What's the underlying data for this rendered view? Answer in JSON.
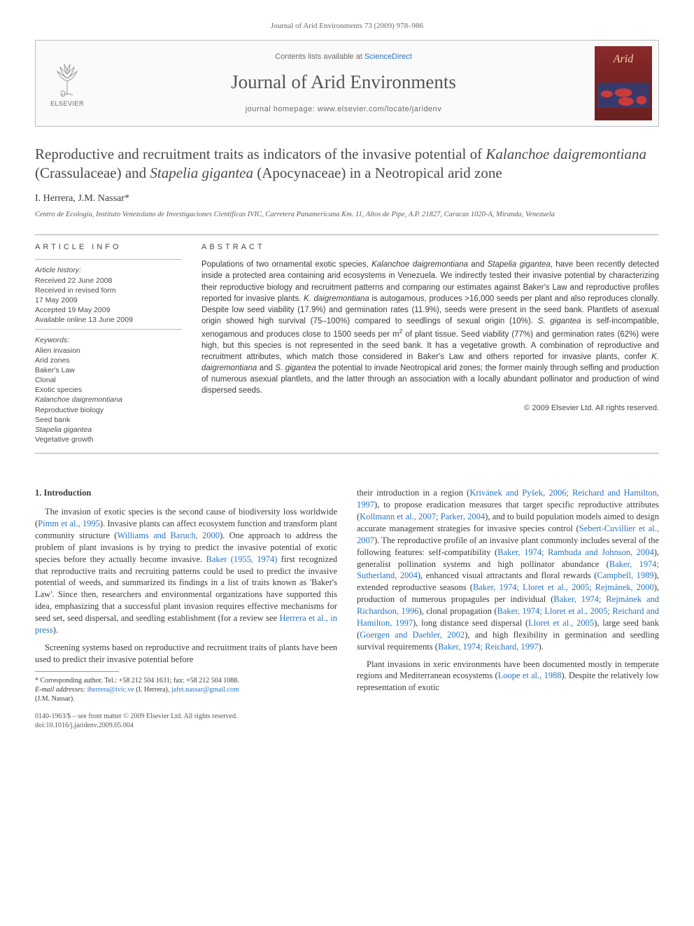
{
  "running_head": "Journal of Arid Environments 73 (2009) 978–986",
  "header": {
    "contents_prefix": "Contents lists available at ",
    "contents_link": "ScienceDirect",
    "journal_title": "Journal of Arid Environments",
    "homepage_prefix": "journal homepage: ",
    "homepage_url": "www.elsevier.com/locate/jaridenv",
    "publisher_label": "ELSEVIER",
    "cover_brand": "Arid"
  },
  "title_parts": {
    "p1": "Reproductive and recruitment traits as indicators of the invasive potential of ",
    "s1": "Kalanchoe daigremontiana",
    "p2": " (Crassulaceae) and ",
    "s2": "Stapelia gigantea",
    "p3": " (Apocynaceae) in a Neotropical arid zone"
  },
  "authors": "I. Herrera, J.M. Nassar*",
  "affiliation": "Centro de Ecología, Instituto Venezolano de Investigaciones Científicas IVIC, Carretera Panamericana Km. 11, Altos de Pipe, A.P. 21827, Caracas 1020-A, Miranda, Venezuela",
  "info": {
    "section_label": "ARTICLE INFO",
    "history_label": "Article history:",
    "received": "Received 22 June 2008",
    "revised_1": "Received in revised form",
    "revised_2": "17 May 2009",
    "accepted": "Accepted 19 May 2009",
    "online": "Available online 13 June 2009",
    "keywords_label": "Keywords:",
    "keywords": [
      {
        "t": "Alien invasion",
        "ital": false
      },
      {
        "t": "Arid zones",
        "ital": false
      },
      {
        "t": "Baker's Law",
        "ital": false
      },
      {
        "t": "Clonal",
        "ital": false
      },
      {
        "t": "Exotic species",
        "ital": false
      },
      {
        "t": "Kalanchoe daigremontiana",
        "ital": true
      },
      {
        "t": "Reproductive biology",
        "ital": false
      },
      {
        "t": "Seed bank",
        "ital": false
      },
      {
        "t": "Stapelia gigantea",
        "ital": true
      },
      {
        "t": "Vegetative growth",
        "ital": false
      }
    ]
  },
  "abstract": {
    "section_label": "ABSTRACT",
    "text_html": "Populations of two ornamental exotic species, <span class='ital'>Kalanchoe daigremontiana</span> and <span class='ital'>Stapelia gigantea</span>, have been recently detected inside a protected area containing arid ecosystems in Venezuela. We indirectly tested their invasive potential by characterizing their reproductive biology and recruitment patterns and comparing our estimates against Baker's Law and reproductive profiles reported for invasive plants. <span class='ital'>K. daigremontiana</span> is autogamous, produces &gt;16,000 seeds per plant and also reproduces clonally. Despite low seed viability (17.9%) and germination rates (11.9%), seeds were present in the seed bank. Plantlets of asexual origin showed high survival (75–100%) compared to seedlings of sexual origin (10%). <span class='ital'>S. gigantea</span> is self-incompatible, xenogamous and produces close to 1500 seeds per m<span class='sup'>2</span> of plant tissue. Seed viability (77%) and germination rates (62%) were high, but this species is not represented in the seed bank. It has a vegetative growth. A combination of reproductive and recruitment attributes, which match those considered in Baker's Law and others reported for invasive plants, confer <span class='ital'>K. daigremontiana</span> and <span class='ital'>S. gigantea</span> the potential to invade Neotropical arid zones; the former mainly through selfing and production of numerous asexual plantlets, and the latter through an association with a locally abundant pollinator and production of wind dispersed seeds.",
    "copyright": "© 2009 Elsevier Ltd. All rights reserved."
  },
  "body": {
    "h1": "1. Introduction",
    "p1": "The invasion of exotic species is the second cause of biodiversity loss worldwide (<a class='ref'>Pimm et al., 1995</a>). Invasive plants can affect ecosystem function and transform plant community structure (<a class='ref'>Williams and Baruch, 2000</a>). One approach to address the problem of plant invasions is by trying to predict the invasive potential of exotic species before they actually become invasive. <a class='ref'>Baker (1955, 1974)</a> first recognized that reproductive traits and recruiting patterns could be used to predict the invasive potential of weeds, and summarized its findings in a list of traits known as 'Baker's Law'. Since then, researchers and environmental organizations have supported this idea, emphasizing that a successful plant invasion requires effective mechanisms for seed set, seed dispersal, and seedling establishment (for a review see <a class='ref'>Herrera et al., in press</a>).",
    "p2": "Screening systems based on reproductive and recruitment traits of plants have been used to predict their invasive potential before",
    "p3": "their introduction in a region (<a class='ref'>Krivánek and Pyšek, 2006; Reichard and Hamilton, 1997</a>), to propose eradication measures that target specific reproductive attributes (<a class='ref'>Kollmann et al., 2007; Parker, 2004</a>), and to build population models aimed to design accurate management strategies for invasive species control (<a class='ref'>Sebert-Cuvillier et al., 2007</a>). The reproductive profile of an invasive plant commonly includes several of the following features: self-compatibility (<a class='ref'>Baker, 1974; Rambuda and Johnson, 2004</a>), generalist pollination systems and high pollinator abundance (<a class='ref'>Baker, 1974; Sutherland, 2004</a>), enhanced visual attractants and floral rewards (<a class='ref'>Campbell, 1989</a>), extended reproductive seasons (<a class='ref'>Baker, 1974; Lloret et al., 2005; Rejmánek, 2000</a>), production of numerous propagules per individual (<a class='ref'>Baker, 1974; Rejmánek and Richardson, 1996</a>), clonal propagation (<a class='ref'>Baker, 1974; Lloret et al., 2005; Reichard and Hamilton, 1997</a>), long distance seed dispersal (<a class='ref'>Lloret et al., 2005</a>), large seed bank (<a class='ref'>Goergen and Daehler, 2002</a>), and high flexibility in germination and seedling survival requirements (<a class='ref'>Baker, 1974; Reichard, 1997</a>).",
    "p4": "Plant invasions in xeric environments have been documented mostly in temperate regions and Mediterranean ecosystems (<a class='ref'>Loope et al., 1988</a>). Despite the relatively low representation of exotic"
  },
  "footnotes": {
    "corr": "* Corresponding author. Tel.: +58 212 504 1631; fax: +58 212 504 1088.",
    "email_label": "E-mail addresses:",
    "email1": "iherrera@ivic.ve",
    "email1_who": " (I. Herrera), ",
    "email2": "jafet.nassar@gmail.com",
    "email2_who": "(J.M. Nassar)."
  },
  "footer": {
    "l1": "0140-1963/$ – see front matter © 2009 Elsevier Ltd. All rights reserved.",
    "l2": "doi:10.1016/j.jaridenv.2009.05.004"
  },
  "colors": {
    "link": "#2a75c0",
    "text": "#3a3a3a",
    "rule": "#aaaaaa",
    "cover_bg": "#7a2424",
    "cover_brand": "#f0d8a0"
  }
}
